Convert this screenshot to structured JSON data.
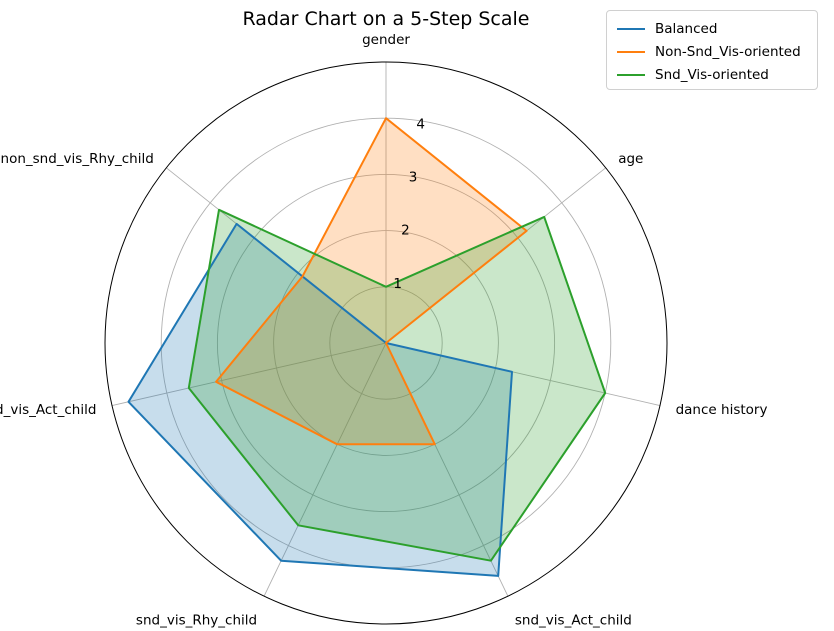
{
  "chart_data": {
    "type": "radar",
    "title": "Radar Chart on a 5-Step Scale",
    "categories": [
      "gender",
      "age",
      "dance history",
      "snd_vis_Act_child",
      "snd_vis_Rhy_child",
      "non_snd_vis_Act_child",
      "non_snd_vis_Rhy_child"
    ],
    "radial_ticks": [
      "1",
      "2",
      "3",
      "4"
    ],
    "rlim": [
      0,
      5
    ],
    "grid": true,
    "legend_position": "top-right",
    "series": [
      {
        "name": "Balanced",
        "color": "#1f77b4",
        "values": [
          0,
          0,
          2.3,
          4.6,
          4.3,
          4.7,
          3.4
        ]
      },
      {
        "name": "Non-Snd_Vis-oriented",
        "color": "#ff7f0e",
        "values": [
          4.0,
          3.2,
          0,
          2.0,
          2.0,
          3.1,
          1.9
        ]
      },
      {
        "name": "Snd_Vis-oriented",
        "color": "#2ca02c",
        "values": [
          1.0,
          3.6,
          4.0,
          4.3,
          3.6,
          3.6,
          3.8
        ]
      }
    ]
  }
}
